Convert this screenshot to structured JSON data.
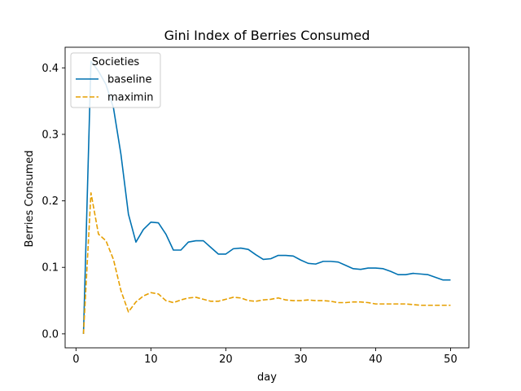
{
  "chart_data": {
    "type": "line",
    "title": "Gini Index of Berries Consumed",
    "xlabel": "day",
    "ylabel": "Berries Consumed",
    "xlim": [
      -1.45,
      52.45
    ],
    "ylim": [
      -0.021,
      0.431
    ],
    "x_ticks": [
      0,
      10,
      20,
      30,
      40,
      50
    ],
    "y_ticks": [
      0.0,
      0.1,
      0.2,
      0.3,
      0.4
    ],
    "grid": false,
    "legend": {
      "title": "Societies",
      "position": "top-left"
    },
    "x": [
      1,
      2,
      3,
      4,
      5,
      6,
      7,
      8,
      9,
      10,
      11,
      12,
      13,
      14,
      15,
      16,
      17,
      18,
      19,
      20,
      21,
      22,
      23,
      24,
      25,
      26,
      27,
      28,
      29,
      30,
      31,
      32,
      33,
      34,
      35,
      36,
      37,
      38,
      39,
      40,
      41,
      42,
      43,
      44,
      45,
      46,
      47,
      48,
      49,
      50
    ],
    "series": [
      {
        "name": "baseline",
        "color": "#0072b2",
        "style": "solid",
        "values": [
          0.0,
          0.41,
          0.395,
          0.375,
          0.34,
          0.27,
          0.18,
          0.138,
          0.157,
          0.168,
          0.167,
          0.15,
          0.126,
          0.126,
          0.138,
          0.14,
          0.14,
          0.13,
          0.12,
          0.12,
          0.128,
          0.129,
          0.127,
          0.119,
          0.112,
          0.113,
          0.118,
          0.118,
          0.117,
          0.111,
          0.106,
          0.105,
          0.109,
          0.109,
          0.108,
          0.103,
          0.098,
          0.097,
          0.099,
          0.099,
          0.098,
          0.094,
          0.089,
          0.089,
          0.091,
          0.09,
          0.089,
          0.085,
          0.081,
          0.081
        ]
      },
      {
        "name": "maximin",
        "color": "#e69f00",
        "style": "dashed",
        "values": [
          0.0,
          0.212,
          0.15,
          0.14,
          0.112,
          0.065,
          0.033,
          0.048,
          0.057,
          0.062,
          0.06,
          0.05,
          0.047,
          0.051,
          0.054,
          0.055,
          0.052,
          0.049,
          0.049,
          0.052,
          0.055,
          0.054,
          0.05,
          0.049,
          0.051,
          0.052,
          0.054,
          0.051,
          0.05,
          0.05,
          0.051,
          0.05,
          0.05,
          0.049,
          0.047,
          0.047,
          0.048,
          0.048,
          0.047,
          0.045,
          0.045,
          0.045,
          0.045,
          0.045,
          0.044,
          0.043,
          0.043,
          0.043,
          0.043,
          0.043
        ]
      }
    ]
  }
}
